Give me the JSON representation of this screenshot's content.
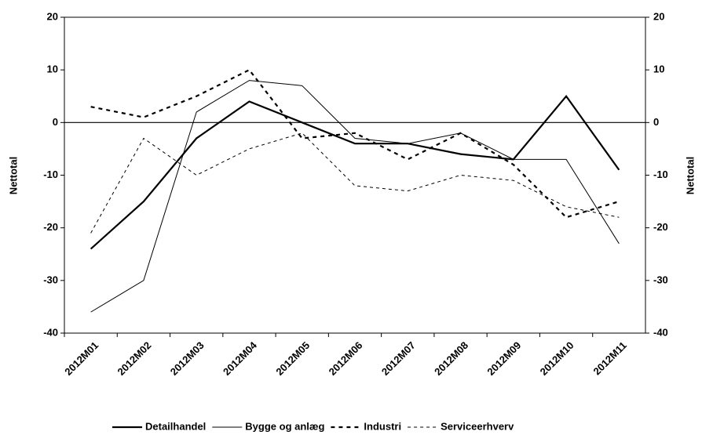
{
  "chart_data": {
    "type": "line",
    "categories": [
      "2012M01",
      "2012M02",
      "2012M03",
      "2012M04",
      "2012M05",
      "2012M06",
      "2012M07",
      "2012M08",
      "2012M09",
      "2012M10",
      "2012M11"
    ],
    "series": [
      {
        "name": "Detailhandel",
        "color": "#000000",
        "dash": false,
        "width": 2.2,
        "values": [
          -24,
          -15,
          -3,
          4,
          0,
          -4,
          -4,
          -6,
          -7,
          5,
          -9
        ]
      },
      {
        "name": "Bygge og anlæg",
        "color": "#000000",
        "dash": false,
        "width": 1,
        "values": [
          -36,
          -30,
          2,
          8,
          7,
          -3,
          -4,
          -2,
          -7,
          -7,
          -23
        ]
      },
      {
        "name": "Industri",
        "color": "#000000",
        "dash": true,
        "width": 2.2,
        "values": [
          3,
          1,
          5,
          10,
          -3,
          -2,
          -7,
          -2,
          -8,
          -18,
          -15
        ]
      },
      {
        "name": "Serviceerhverv",
        "color": "#000000",
        "dash": true,
        "width": 1,
        "values": [
          -21,
          -3,
          -10,
          -5,
          -2,
          -12,
          -13,
          -10,
          -11,
          -16,
          -18
        ]
      }
    ],
    "ylabel": "Nettotal",
    "y2label": "Nettotal",
    "ylim": [
      -40,
      20
    ],
    "yticks": [
      -40,
      -30,
      -20,
      -10,
      0,
      10,
      20
    ],
    "y2lim": [
      -40,
      20
    ],
    "y2ticks": [
      -40,
      -30,
      -20,
      -10,
      0,
      10,
      20
    ],
    "legend": "bottom"
  }
}
